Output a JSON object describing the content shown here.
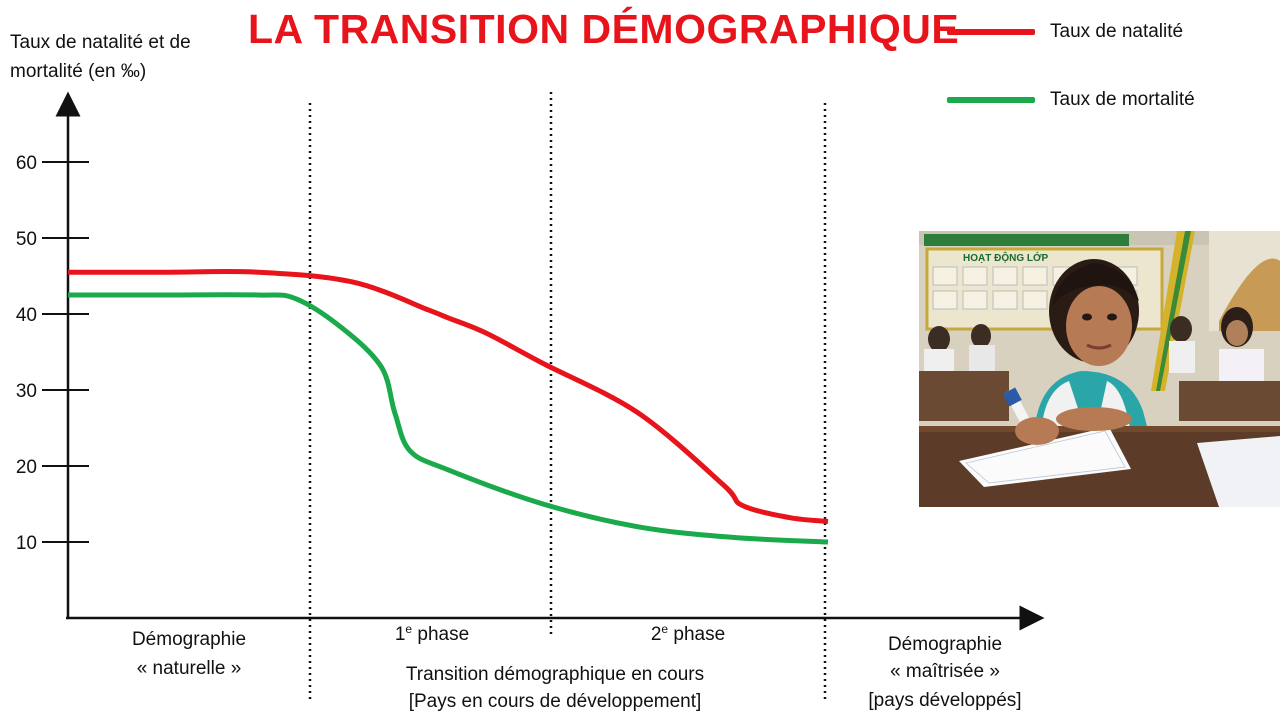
{
  "chart_data": {
    "type": "line",
    "title": "LA TRANSITION DÉMOGRAPHIQUE",
    "ylabel": "Taux de natalité et de mortalité (en ‰)",
    "ylim": [
      0,
      60
    ],
    "yticks": [
      "10",
      "20",
      "30",
      "40",
      "50",
      "60"
    ],
    "grid": false,
    "legend_position": "top-right",
    "series": [
      {
        "name": "Taux de natalité",
        "color": "#e8141b",
        "x": [
          0,
          0.5,
          1.0,
          1.5,
          1.9,
          2.0,
          2.2,
          2.5,
          3.0,
          3.45,
          3.55,
          3.8,
          4.0
        ],
        "y": [
          45.5,
          45.5,
          45.5,
          44.2,
          40.5,
          39.5,
          37.5,
          33.5,
          27,
          17.5,
          14.8,
          13.2,
          12.7
        ]
      },
      {
        "name": "Taux de mortalité",
        "color": "#1aaa4b",
        "x": [
          0,
          0.5,
          1.0,
          1.2,
          1.45,
          1.65,
          1.72,
          1.8,
          2.0,
          2.5,
          3.0,
          3.5,
          4.0
        ],
        "y": [
          42.5,
          42.5,
          42.5,
          42,
          38,
          33,
          27,
          22,
          19.5,
          15,
          12,
          10.6,
          10
        ]
      }
    ],
    "phases": [
      {
        "lines": [
          "Démographie",
          "« naturelle »"
        ]
      },
      {
        "lines": [
          "1e phase"
        ]
      },
      {
        "lines": [
          "2e phase"
        ]
      },
      {
        "lines": [
          "Démographie",
          "« maîtrisée »",
          "[pays développés]"
        ]
      }
    ],
    "group_label": [
      "Transition démographique en cours",
      "[Pays en cours de développement]"
    ]
  },
  "legend": {
    "natalite": "Taux de natalité",
    "mortalite": "Taux de mortalité"
  },
  "phase_labels": {
    "p1_l1": "Démographie",
    "p1_l2": "« naturelle »",
    "p2_main": "1",
    "p2_sup": "e",
    "p2_rest": " phase",
    "p3_main": "2",
    "p3_sup": "e",
    "p3_rest": " phase",
    "p4_l1": "Démographie",
    "p4_l2": "« maîtrisée »",
    "p4_l3": "[pays développés]",
    "transition_l1": "Transition démographique en cours",
    "transition_l2": "[Pays en cours de développement]"
  },
  "photo": {
    "board_text": "HOẠT ĐỘNG LỚP"
  }
}
